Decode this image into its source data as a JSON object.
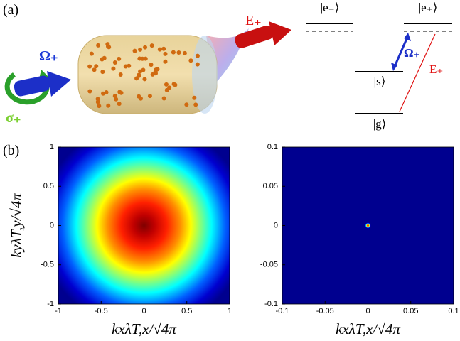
{
  "figure": {
    "panel_a": "(a)",
    "panel_b": "(b)",
    "beam_label": "E₊",
    "control_label": "Ω₊",
    "polarization_label": "σ₊",
    "levels": {
      "e_minus": "|e₋⟩",
      "e_plus": "|e₊⟩",
      "s": "|s⟩",
      "g": "|g⟩"
    },
    "transition_control": "Ω₊",
    "transition_probe": "E₊"
  },
  "chart_data": [
    {
      "type": "heatmap",
      "colormap": "jet",
      "xlim": [
        -1,
        1
      ],
      "ylim": [
        -1,
        1
      ],
      "xticks": [
        -1,
        -0.5,
        0,
        0.5,
        1
      ],
      "yticks": [
        -1,
        -0.5,
        0,
        0.5,
        1
      ],
      "x_label": "kxλT,x/√4π",
      "y_label": "kyλT,y/√4π"
    },
    {
      "type": "heatmap",
      "colormap": "jet",
      "xlim": [
        -0.1,
        0.1
      ],
      "ylim": [
        -0.1,
        0.1
      ],
      "xticks": [
        -0.1,
        -0.05,
        0,
        0.05,
        0.1
      ],
      "yticks": [
        -0.1,
        -0.05,
        0,
        0.05,
        0.1
      ],
      "x_label": "kxλT,x/√4π"
    }
  ]
}
